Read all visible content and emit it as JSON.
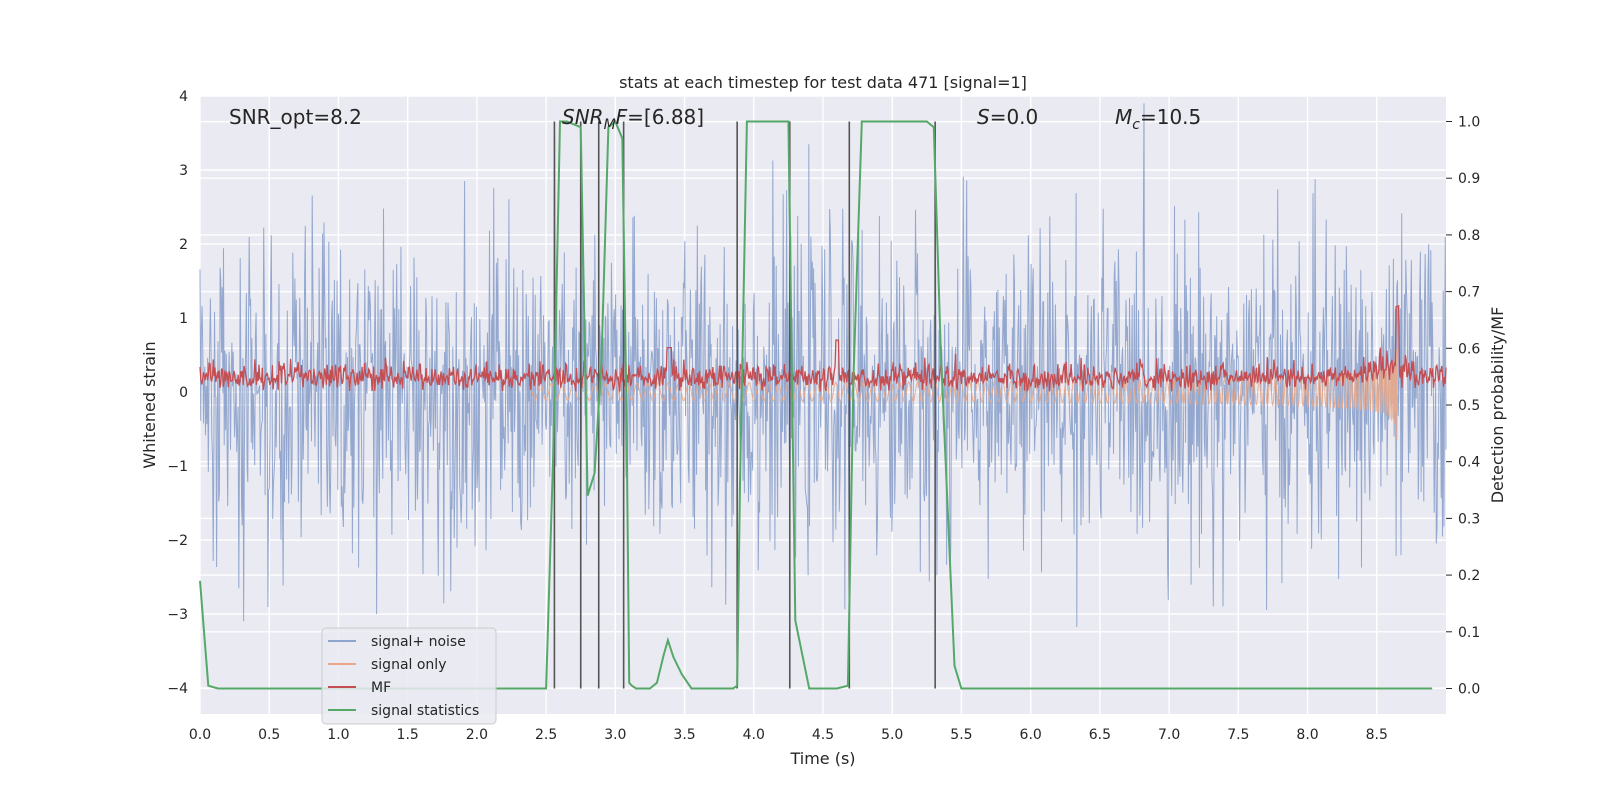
{
  "chart_data": {
    "type": "line",
    "title": "stats at each timestep for test data 471 [signal=1]",
    "xlabel": "Time (s)",
    "ylabel": "Whitened strain",
    "y2label": "Detection probability/MF",
    "xlim": [
      0,
      9
    ],
    "ylim": [
      -4.35,
      4
    ],
    "y2lim": [
      -0.045,
      1.045
    ],
    "xticks": [
      "0.0",
      "0.5",
      "1.0",
      "1.5",
      "2.0",
      "2.5",
      "3.0",
      "3.5",
      "4.0",
      "4.5",
      "5.0",
      "5.5",
      "6.0",
      "6.5",
      "7.0",
      "7.5",
      "8.0",
      "8.5"
    ],
    "yticks": [
      "−4",
      "−3",
      "−2",
      "−1",
      "0",
      "1",
      "2",
      "3",
      "4"
    ],
    "y2ticks": [
      "0.0",
      "0.1",
      "0.2",
      "0.3",
      "0.4",
      "0.5",
      "0.6",
      "0.7",
      "0.8",
      "0.9",
      "1.0"
    ],
    "grid": true,
    "legend_position": "lower-left",
    "annotations": {
      "snr_opt": "SNR_opt=8.2",
      "snr_mf": "=[6.88]",
      "s_value": "=0.0",
      "mc_value": "=10.5"
    },
    "series": [
      {
        "name": "signal+ noise",
        "color": "#8fa4cc",
        "axis": "left",
        "description": "whitened noisy strain, approx. Gaussian std 1 over 0–9 s"
      },
      {
        "name": "signal only",
        "color": "#e8a889",
        "axis": "left",
        "description": "chirp waveform growing to peak near t=8.65 s",
        "peak_time": 8.65,
        "peak_amplitude": 1.45
      },
      {
        "name": "MF",
        "color": "#c44e52",
        "axis": "left",
        "description": "matched filter output, mostly between 0 and 0.45, spikes near 3.4, 4.6, 8.65 s"
      },
      {
        "name": "signal statistics",
        "color": "#55a868",
        "axis": "right",
        "x": [
          0.0,
          0.06,
          0.13,
          0.5,
          1.0,
          1.5,
          2.0,
          2.5,
          2.55,
          2.6,
          2.65,
          2.75,
          2.8,
          2.85,
          2.9,
          2.95,
          3.0,
          3.05,
          3.08,
          3.1,
          3.12,
          3.15,
          3.2,
          3.25,
          3.3,
          3.35,
          3.38,
          3.42,
          3.48,
          3.55,
          3.6,
          3.7,
          3.8,
          3.85,
          3.88,
          3.9,
          3.95,
          4.0,
          4.2,
          4.25,
          4.3,
          4.4,
          4.5,
          4.6,
          4.68,
          4.72,
          4.78,
          5.0,
          5.25,
          5.3,
          5.35,
          5.45,
          5.5,
          5.6,
          6.0,
          7.0,
          8.0,
          8.9
        ],
        "values": [
          0.19,
          0.005,
          0.0,
          0.0,
          0.0,
          0.0,
          0.0,
          0.0,
          0.4,
          1.0,
          1.0,
          0.99,
          0.34,
          0.38,
          0.58,
          0.99,
          1.0,
          0.97,
          0.5,
          0.01,
          0.005,
          0.0,
          0.0,
          0.0,
          0.01,
          0.06,
          0.085,
          0.055,
          0.025,
          0.0,
          0.0,
          0.0,
          0.0,
          0.0,
          0.005,
          0.35,
          1.0,
          1.0,
          1.0,
          1.0,
          0.12,
          0.0,
          0.0,
          0.0,
          0.005,
          0.55,
          1.0,
          1.0,
          1.0,
          0.99,
          0.6,
          0.04,
          0.0,
          0.0,
          0.0,
          0.0,
          0.0,
          0.0
        ]
      }
    ],
    "vertical_markers": [
      2.56,
      2.75,
      2.88,
      3.06,
      3.88,
      4.26,
      4.69,
      5.31
    ]
  }
}
